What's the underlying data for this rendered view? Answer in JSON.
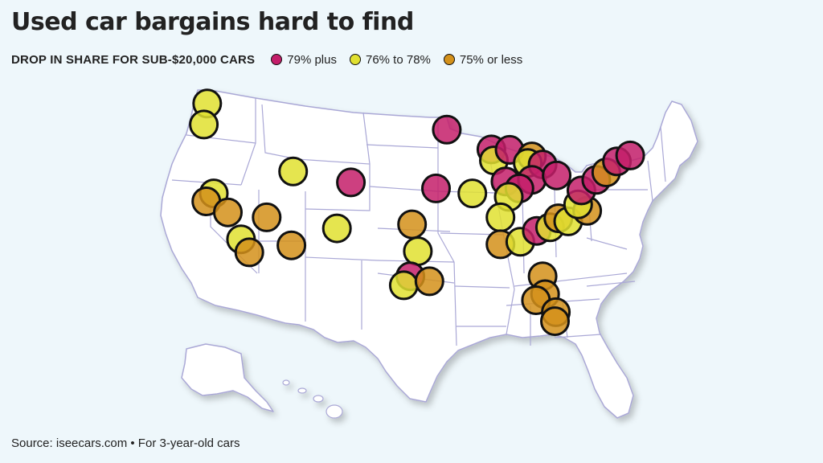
{
  "title": "Used car bargains hard to find",
  "subtitle": "DROP IN SHARE FOR SUB-$20,000 CARS",
  "source": "Source: iseecars.com • For 3-year-old cars",
  "legend": [
    {
      "label": "79% plus",
      "color": "#c41e6a"
    },
    {
      "label": "76% to 78%",
      "color": "#e0e030"
    },
    {
      "label": "75% or less",
      "color": "#d4911a"
    }
  ],
  "colors": {
    "background": "#eef7fb",
    "land": "#ffffff",
    "state_border": "#aaa8d6",
    "marker_stroke": "#111111"
  },
  "chart_data": {
    "type": "map",
    "region": "United States",
    "categories": [
      "79% plus",
      "76% to 78%",
      "75% or less"
    ],
    "markers": [
      {
        "name": "Seattle",
        "category": "76% to 78%",
        "lon": -122.3,
        "lat": 47.6
      },
      {
        "name": "Portland",
        "category": "76% to 78%",
        "lon": -122.7,
        "lat": 45.5
      },
      {
        "name": "Sacramento",
        "category": "76% to 78%",
        "lon": -121.5,
        "lat": 38.6
      },
      {
        "name": "San Francisco",
        "category": "75% or less",
        "lon": -122.4,
        "lat": 37.8
      },
      {
        "name": "Fresno",
        "category": "75% or less",
        "lon": -119.8,
        "lat": 36.7
      },
      {
        "name": "Las Vegas",
        "category": "75% or less",
        "lon": -115.1,
        "lat": 36.2
      },
      {
        "name": "Los Angeles",
        "category": "76% to 78%",
        "lon": -118.2,
        "lat": 34.0
      },
      {
        "name": "San Diego",
        "category": "75% or less",
        "lon": -117.2,
        "lat": 32.7
      },
      {
        "name": "Phoenix",
        "category": "75% or less",
        "lon": -112.1,
        "lat": 33.4
      },
      {
        "name": "Salt Lake City",
        "category": "76% to 78%",
        "lon": -111.9,
        "lat": 40.8
      },
      {
        "name": "Denver",
        "category": "79% plus",
        "lon": -104.9,
        "lat": 39.7
      },
      {
        "name": "Albuquerque",
        "category": "76% to 78%",
        "lon": -106.6,
        "lat": 35.1
      },
      {
        "name": "Minneapolis",
        "category": "79% plus",
        "lon": -93.3,
        "lat": 44.98
      },
      {
        "name": "Kansas City",
        "category": "79% plus",
        "lon": -94.6,
        "lat": 39.1
      },
      {
        "name": "St. Louis",
        "category": "76% to 78%",
        "lon": -90.2,
        "lat": 38.6
      },
      {
        "name": "Oklahoma City",
        "category": "75% or less",
        "lon": -97.5,
        "lat": 35.5
      },
      {
        "name": "Dallas",
        "category": "76% to 78%",
        "lon": -96.8,
        "lat": 32.8
      },
      {
        "name": "Austin",
        "category": "79% plus",
        "lon": -97.7,
        "lat": 30.3
      },
      {
        "name": "San Antonio",
        "category": "76% to 78%",
        "lon": -98.5,
        "lat": 29.4
      },
      {
        "name": "Houston",
        "category": "75% or less",
        "lon": -95.4,
        "lat": 29.8
      },
      {
        "name": "Milwaukee",
        "category": "79% plus",
        "lon": -87.9,
        "lat": 43.0
      },
      {
        "name": "Chicago",
        "category": "76% to 78%",
        "lon": -87.6,
        "lat": 41.9
      },
      {
        "name": "Grand Rapids",
        "category": "79% plus",
        "lon": -85.7,
        "lat": 42.96
      },
      {
        "name": "Detroit",
        "category": "75% or less",
        "lon": -83.0,
        "lat": 42.3
      },
      {
        "name": "Toledo",
        "category": "76% to 78%",
        "lon": -83.5,
        "lat": 41.65
      },
      {
        "name": "Cleveland",
        "category": "79% plus",
        "lon": -81.7,
        "lat": 41.5
      },
      {
        "name": "Indianapolis",
        "category": "79% plus",
        "lon": -86.2,
        "lat": 39.8
      },
      {
        "name": "Columbus",
        "category": "79% plus",
        "lon": -83.0,
        "lat": 39.96
      },
      {
        "name": "Cincinnati",
        "category": "79% plus",
        "lon": -84.5,
        "lat": 39.1
      },
      {
        "name": "Louisville",
        "category": "76% to 78%",
        "lon": -85.8,
        "lat": 38.25
      },
      {
        "name": "Nashville",
        "category": "76% to 78%",
        "lon": -86.8,
        "lat": 36.2
      },
      {
        "name": "Birmingham",
        "category": "75% or less",
        "lon": -86.8,
        "lat": 33.5
      },
      {
        "name": "Atlanta",
        "category": "76% to 78%",
        "lon": -84.4,
        "lat": 33.75
      },
      {
        "name": "Greenville",
        "category": "79% plus",
        "lon": -82.4,
        "lat": 34.85
      },
      {
        "name": "Charlotte",
        "category": "76% to 78%",
        "lon": -80.8,
        "lat": 35.2
      },
      {
        "name": "Greensboro",
        "category": "75% or less",
        "lon": -79.8,
        "lat": 36.1
      },
      {
        "name": "Raleigh",
        "category": "76% to 78%",
        "lon": -78.6,
        "lat": 35.8
      },
      {
        "name": "Norfolk",
        "category": "75% or less",
        "lon": -76.3,
        "lat": 36.85
      },
      {
        "name": "Richmond",
        "category": "76% to 78%",
        "lon": -77.4,
        "lat": 37.5
      },
      {
        "name": "Pittsburgh",
        "category": "79% plus",
        "lon": -80.0,
        "lat": 40.4
      },
      {
        "name": "Washington",
        "category": "79% plus",
        "lon": -77.0,
        "lat": 38.9
      },
      {
        "name": "Philadelphia",
        "category": "79% plus",
        "lon": -75.2,
        "lat": 39.95
      },
      {
        "name": "New York",
        "category": "75% or less",
        "lon": -74.0,
        "lat": 40.7
      },
      {
        "name": "Hartford",
        "category": "79% plus",
        "lon": -72.7,
        "lat": 41.8
      },
      {
        "name": "Boston",
        "category": "79% plus",
        "lon": -71.1,
        "lat": 42.4
      },
      {
        "name": "Jacksonville",
        "category": "75% or less",
        "lon": -81.7,
        "lat": 30.3
      },
      {
        "name": "Orlando",
        "category": "75% or less",
        "lon": -81.4,
        "lat": 28.5
      },
      {
        "name": "Tampa",
        "category": "75% or less",
        "lon": -82.5,
        "lat": 27.9
      },
      {
        "name": "West Palm Beach",
        "category": "75% or less",
        "lon": -80.1,
        "lat": 26.7
      },
      {
        "name": "Miami",
        "category": "75% or less",
        "lon": -80.2,
        "lat": 25.8
      }
    ]
  }
}
